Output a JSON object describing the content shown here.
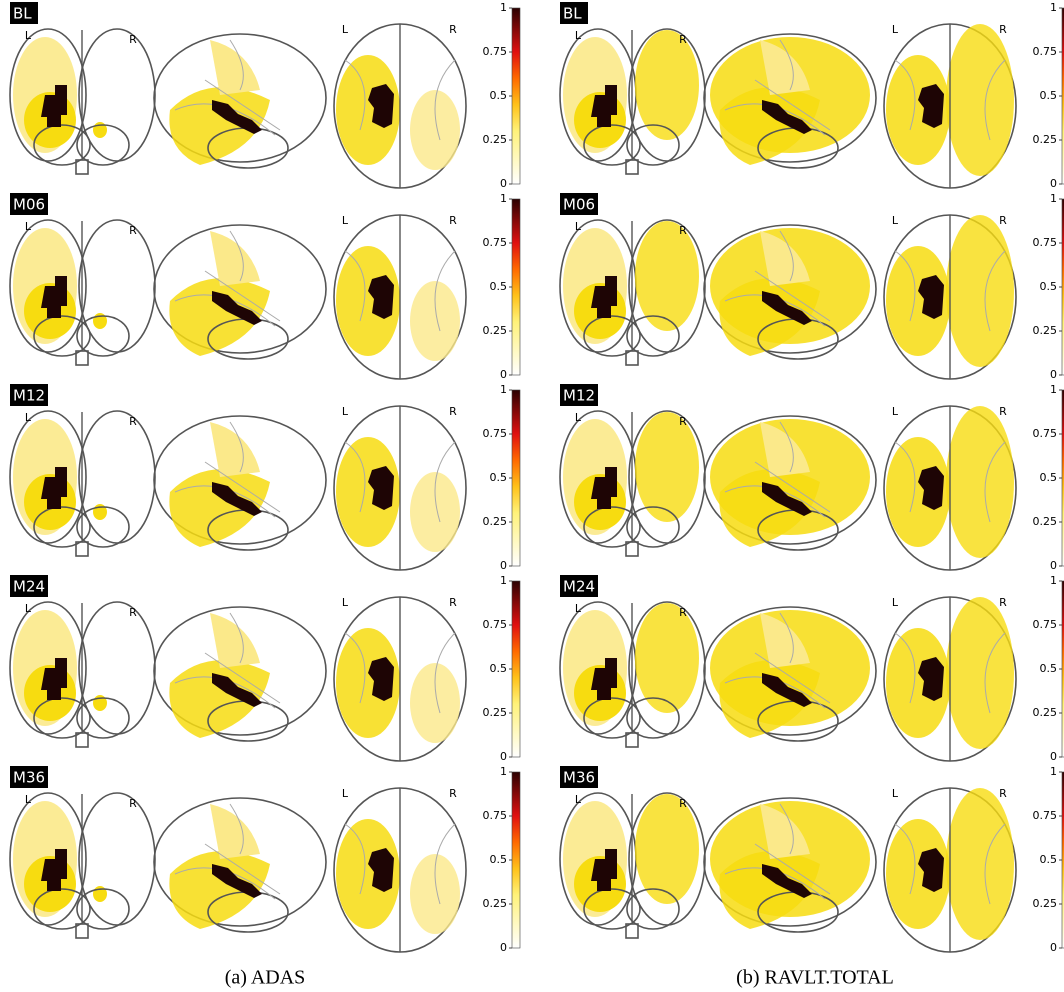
{
  "panels": [
    {
      "caption": "(a) ADAS"
    },
    {
      "caption": "(b) RAVLT.TOTAL"
    }
  ],
  "timepoints": [
    "BL",
    "M06",
    "M12",
    "M24",
    "M36"
  ],
  "hemispheres": {
    "left": "L",
    "right": "R"
  },
  "colorbar_ticks": [
    0,
    0.25,
    0.5,
    0.75,
    1
  ]
}
